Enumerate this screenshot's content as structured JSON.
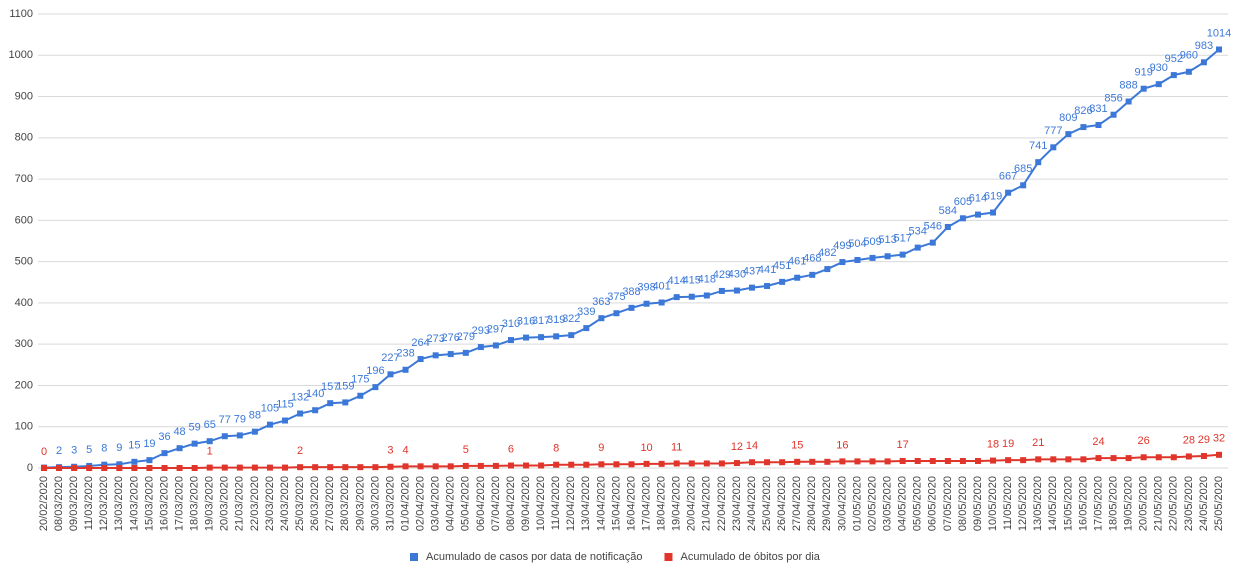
{
  "chart_data": {
    "type": "line",
    "categories": [
      "20/02/2020",
      "08/03/2020",
      "09/03/2020",
      "11/03/2020",
      "12/03/2020",
      "13/03/2020",
      "14/03/2020",
      "15/03/2020",
      "16/03/2020",
      "17/03/2020",
      "18/03/2020",
      "19/03/2020",
      "20/03/2020",
      "21/03/2020",
      "22/03/2020",
      "23/03/2020",
      "24/03/2020",
      "25/03/2020",
      "26/03/2020",
      "27/03/2020",
      "28/03/2020",
      "29/03/2020",
      "30/03/2020",
      "31/03/2020",
      "01/04/2020",
      "02/04/2020",
      "03/04/2020",
      "04/04/2020",
      "05/04/2020",
      "06/04/2020",
      "07/04/2020",
      "08/04/2020",
      "09/04/2020",
      "10/04/2020",
      "11/04/2020",
      "12/04/2020",
      "13/04/2020",
      "14/04/2020",
      "15/04/2020",
      "16/04/2020",
      "17/04/2020",
      "18/04/2020",
      "19/04/2020",
      "20/04/2020",
      "21/04/2020",
      "22/04/2020",
      "23/04/2020",
      "24/04/2020",
      "25/04/2020",
      "26/04/2020",
      "27/04/2020",
      "28/04/2020",
      "29/04/2020",
      "30/04/2020",
      "01/05/2020",
      "02/05/2020",
      "03/05/2020",
      "04/05/2020",
      "05/05/2020",
      "06/05/2020",
      "07/05/2020",
      "08/05/2020",
      "09/05/2020",
      "10/05/2020",
      "11/05/2020",
      "12/05/2020",
      "13/05/2020",
      "14/05/2020",
      "15/05/2020",
      "16/05/2020",
      "17/05/2020",
      "18/05/2020",
      "19/05/2020",
      "20/05/2020",
      "21/05/2020",
      "22/05/2020",
      "23/05/2020",
      "24/05/2020",
      "25/05/2020"
    ],
    "series": [
      {
        "name": "Acumulado de casos por data de notificação",
        "color": "#3c78d8",
        "values": [
          1,
          2,
          3,
          5,
          8,
          9,
          15,
          19,
          36,
          48,
          59,
          65,
          77,
          79,
          88,
          105,
          115,
          132,
          140,
          157,
          159,
          175,
          196,
          227,
          238,
          264,
          273,
          276,
          279,
          293,
          297,
          310,
          316,
          317,
          319,
          322,
          339,
          363,
          375,
          388,
          398,
          401,
          414,
          415,
          418,
          429,
          430,
          437,
          441,
          451,
          461,
          468,
          482,
          499,
          504,
          509,
          513,
          517,
          534,
          546,
          584,
          605,
          614,
          619,
          667,
          685,
          741,
          777,
          809,
          826,
          831,
          856,
          888,
          919,
          930,
          952,
          960,
          983,
          1014
        ],
        "value_labels": [
          null,
          2,
          3,
          5,
          8,
          9,
          15,
          19,
          36,
          48,
          59,
          65,
          77,
          79,
          88,
          105,
          115,
          132,
          140,
          157,
          159,
          175,
          196,
          227,
          238,
          264,
          273,
          276,
          279,
          293,
          297,
          310,
          316,
          317,
          319,
          322,
          339,
          363,
          375,
          388,
          398,
          401,
          414,
          415,
          418,
          429,
          430,
          437,
          441,
          451,
          461,
          468,
          482,
          499,
          504,
          509,
          513,
          517,
          534,
          546,
          584,
          605,
          614,
          619,
          667,
          685,
          741,
          777,
          809,
          826,
          831,
          856,
          888,
          919,
          930,
          952,
          960,
          983,
          1014
        ]
      },
      {
        "name": "Acumulado de óbitos por dia",
        "color": "#e0352b",
        "values": [
          0,
          0,
          0,
          0,
          0,
          0,
          0,
          0,
          0,
          0,
          0,
          1,
          1,
          1,
          1,
          1,
          1,
          2,
          2,
          2,
          2,
          2,
          2,
          3,
          4,
          4,
          4,
          4,
          5,
          5,
          5,
          6,
          6,
          6,
          8,
          8,
          8,
          9,
          9,
          9,
          10,
          10,
          11,
          11,
          11,
          11,
          12,
          14,
          14,
          14,
          15,
          15,
          15,
          16,
          16,
          16,
          16,
          17,
          17,
          17,
          17,
          17,
          17,
          18,
          19,
          19,
          21,
          21,
          21,
          21,
          24,
          24,
          24,
          26,
          26,
          26,
          28,
          29,
          32
        ],
        "value_labels": [
          0,
          null,
          null,
          null,
          null,
          null,
          null,
          null,
          null,
          null,
          null,
          1,
          null,
          null,
          null,
          null,
          null,
          2,
          null,
          null,
          null,
          null,
          null,
          3,
          4,
          null,
          null,
          null,
          5,
          null,
          null,
          6,
          null,
          null,
          8,
          null,
          null,
          9,
          null,
          null,
          10,
          null,
          11,
          null,
          null,
          null,
          12,
          14,
          null,
          null,
          15,
          null,
          null,
          16,
          null,
          null,
          null,
          17,
          null,
          null,
          null,
          null,
          null,
          18,
          19,
          null,
          21,
          null,
          null,
          null,
          24,
          null,
          null,
          26,
          null,
          null,
          28,
          29,
          32
        ]
      }
    ],
    "ylim": [
      0,
      1100
    ],
    "yticks": [
      0,
      100,
      200,
      300,
      400,
      500,
      600,
      700,
      800,
      900,
      1000,
      1100
    ],
    "grid": true,
    "legend": "bottom"
  }
}
